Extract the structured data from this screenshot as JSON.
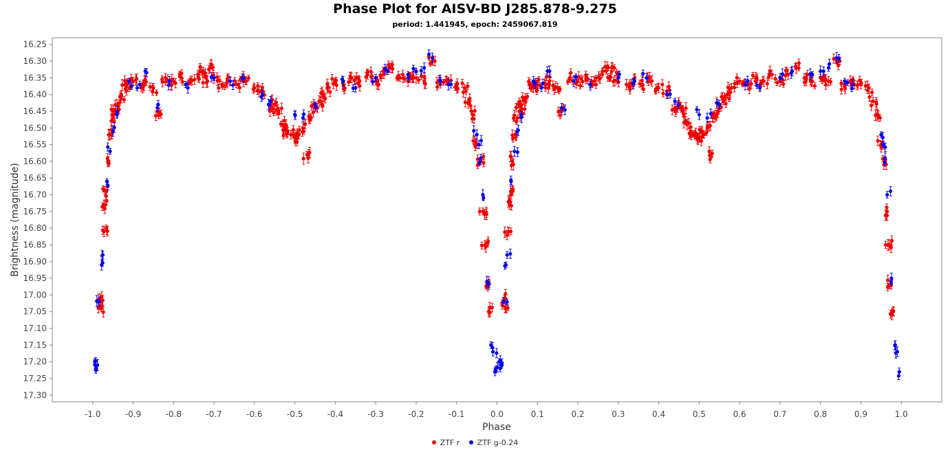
{
  "chart_data": {
    "type": "scatter",
    "title": "Phase Plot for AISV-BD J285.878-9.275",
    "subtitle": "period: 1.441945, epoch: 2459067.819",
    "xlabel": "Phase",
    "ylabel": "Brightness (magnitude)",
    "xlim": [
      -1.1,
      1.1
    ],
    "ylim": [
      16.23,
      17.32
    ],
    "y_inverted": true,
    "x_ticks": [
      "-1.0",
      "-0.9",
      "-0.8",
      "-0.7",
      "-0.6",
      "-0.5",
      "-0.4",
      "-0.3",
      "-0.2",
      "-0.1",
      "0.0",
      "0.1",
      "0.2",
      "0.3",
      "0.4",
      "0.5",
      "0.6",
      "0.7",
      "0.8",
      "0.9",
      "1.0"
    ],
    "y_ticks": [
      "16.25",
      "16.30",
      "16.35",
      "16.40",
      "16.45",
      "16.50",
      "16.55",
      "16.60",
      "16.65",
      "16.70",
      "16.75",
      "16.80",
      "16.85",
      "16.90",
      "16.95",
      "17.00",
      "17.05",
      "17.10",
      "17.15",
      "17.20",
      "17.25",
      "17.30"
    ],
    "grid": false,
    "legend_position": "bottom",
    "phase_range": [
      -1.0,
      1.0
    ],
    "series": [
      {
        "name": "ZTF r",
        "color": "#ee0000",
        "points_one_cycle": [
          [
            0.018,
            17.01
          ],
          [
            0.021,
            17.04
          ],
          [
            0.028,
            16.81
          ],
          [
            0.031,
            16.73
          ],
          [
            0.034,
            16.69
          ],
          [
            0.038,
            16.6
          ],
          [
            0.045,
            16.52
          ],
          [
            0.05,
            16.47
          ],
          [
            0.055,
            16.45
          ],
          [
            0.06,
            16.43
          ],
          [
            0.07,
            16.41
          ],
          [
            0.08,
            16.37
          ],
          [
            0.09,
            16.38
          ],
          [
            0.1,
            16.36
          ],
          [
            0.12,
            16.38
          ],
          [
            0.13,
            16.36
          ],
          [
            0.15,
            16.38
          ],
          [
            0.16,
            16.45
          ],
          [
            0.18,
            16.35
          ],
          [
            0.2,
            16.36
          ],
          [
            0.22,
            16.35
          ],
          [
            0.24,
            16.36
          ],
          [
            0.26,
            16.34
          ],
          [
            0.27,
            16.33
          ],
          [
            0.28,
            16.35
          ],
          [
            0.29,
            16.32
          ],
          [
            0.3,
            16.35
          ],
          [
            0.32,
            16.37
          ],
          [
            0.34,
            16.36
          ],
          [
            0.36,
            16.37
          ],
          [
            0.38,
            16.36
          ],
          [
            0.4,
            16.38
          ],
          [
            0.42,
            16.39
          ],
          [
            0.44,
            16.44
          ],
          [
            0.45,
            16.43
          ],
          [
            0.46,
            16.45
          ],
          [
            0.47,
            16.49
          ],
          [
            0.48,
            16.51
          ],
          [
            0.49,
            16.52
          ],
          [
            0.5,
            16.53
          ],
          [
            0.51,
            16.52
          ],
          [
            0.52,
            16.5
          ],
          [
            0.53,
            16.58
          ],
          [
            0.54,
            16.47
          ],
          [
            0.55,
            16.44
          ],
          [
            0.56,
            16.42
          ],
          [
            0.57,
            16.4
          ],
          [
            0.58,
            16.38
          ],
          [
            0.6,
            16.36
          ],
          [
            0.62,
            16.37
          ],
          [
            0.64,
            16.35
          ],
          [
            0.66,
            16.36
          ],
          [
            0.68,
            16.34
          ],
          [
            0.7,
            16.36
          ],
          [
            0.72,
            16.34
          ],
          [
            0.74,
            16.32
          ],
          [
            0.76,
            16.35
          ],
          [
            0.78,
            16.36
          ],
          [
            0.8,
            16.35
          ],
          [
            0.82,
            16.36
          ],
          [
            0.84,
            16.3
          ],
          [
            0.86,
            16.37
          ],
          [
            0.88,
            16.36
          ],
          [
            0.9,
            16.37
          ],
          [
            0.92,
            16.38
          ],
          [
            0.93,
            16.42
          ],
          [
            0.94,
            16.46
          ],
          [
            0.95,
            16.55
          ],
          [
            0.96,
            16.6
          ],
          [
            0.965,
            16.75
          ],
          [
            0.97,
            16.85
          ],
          [
            0.975,
            16.97
          ],
          [
            0.98,
            17.05
          ]
        ]
      },
      {
        "name": "ZTF g-0.24",
        "color": "#0000ee",
        "points_one_cycle": [
          [
            0.005,
            17.2
          ],
          [
            0.008,
            17.22
          ],
          [
            0.012,
            17.21
          ],
          [
            0.016,
            17.02
          ],
          [
            0.022,
            16.91
          ],
          [
            0.025,
            16.88
          ],
          [
            0.035,
            16.66
          ],
          [
            0.043,
            16.57
          ],
          [
            0.05,
            16.51
          ],
          [
            0.06,
            16.46
          ],
          [
            0.09,
            16.36
          ],
          [
            0.11,
            16.38
          ],
          [
            0.13,
            16.33
          ],
          [
            0.16,
            16.44
          ],
          [
            0.19,
            16.36
          ],
          [
            0.23,
            16.37
          ],
          [
            0.3,
            16.35
          ],
          [
            0.34,
            16.36
          ],
          [
            0.37,
            16.35
          ],
          [
            0.42,
            16.4
          ],
          [
            0.44,
            16.42
          ],
          [
            0.5,
            16.46
          ],
          [
            0.52,
            16.47
          ],
          [
            0.55,
            16.43
          ],
          [
            0.62,
            16.36
          ],
          [
            0.65,
            16.38
          ],
          [
            0.7,
            16.35
          ],
          [
            0.73,
            16.33
          ],
          [
            0.78,
            16.34
          ],
          [
            0.8,
            16.33
          ],
          [
            0.82,
            16.32
          ],
          [
            0.84,
            16.29
          ],
          [
            0.86,
            16.36
          ],
          [
            0.88,
            16.37
          ],
          [
            0.95,
            16.52
          ],
          [
            0.955,
            16.55
          ],
          [
            0.96,
            16.59
          ],
          [
            0.965,
            16.7
          ],
          [
            0.975,
            16.96
          ],
          [
            0.985,
            17.15
          ],
          [
            0.99,
            17.17
          ],
          [
            0.995,
            17.23
          ]
        ]
      }
    ]
  }
}
